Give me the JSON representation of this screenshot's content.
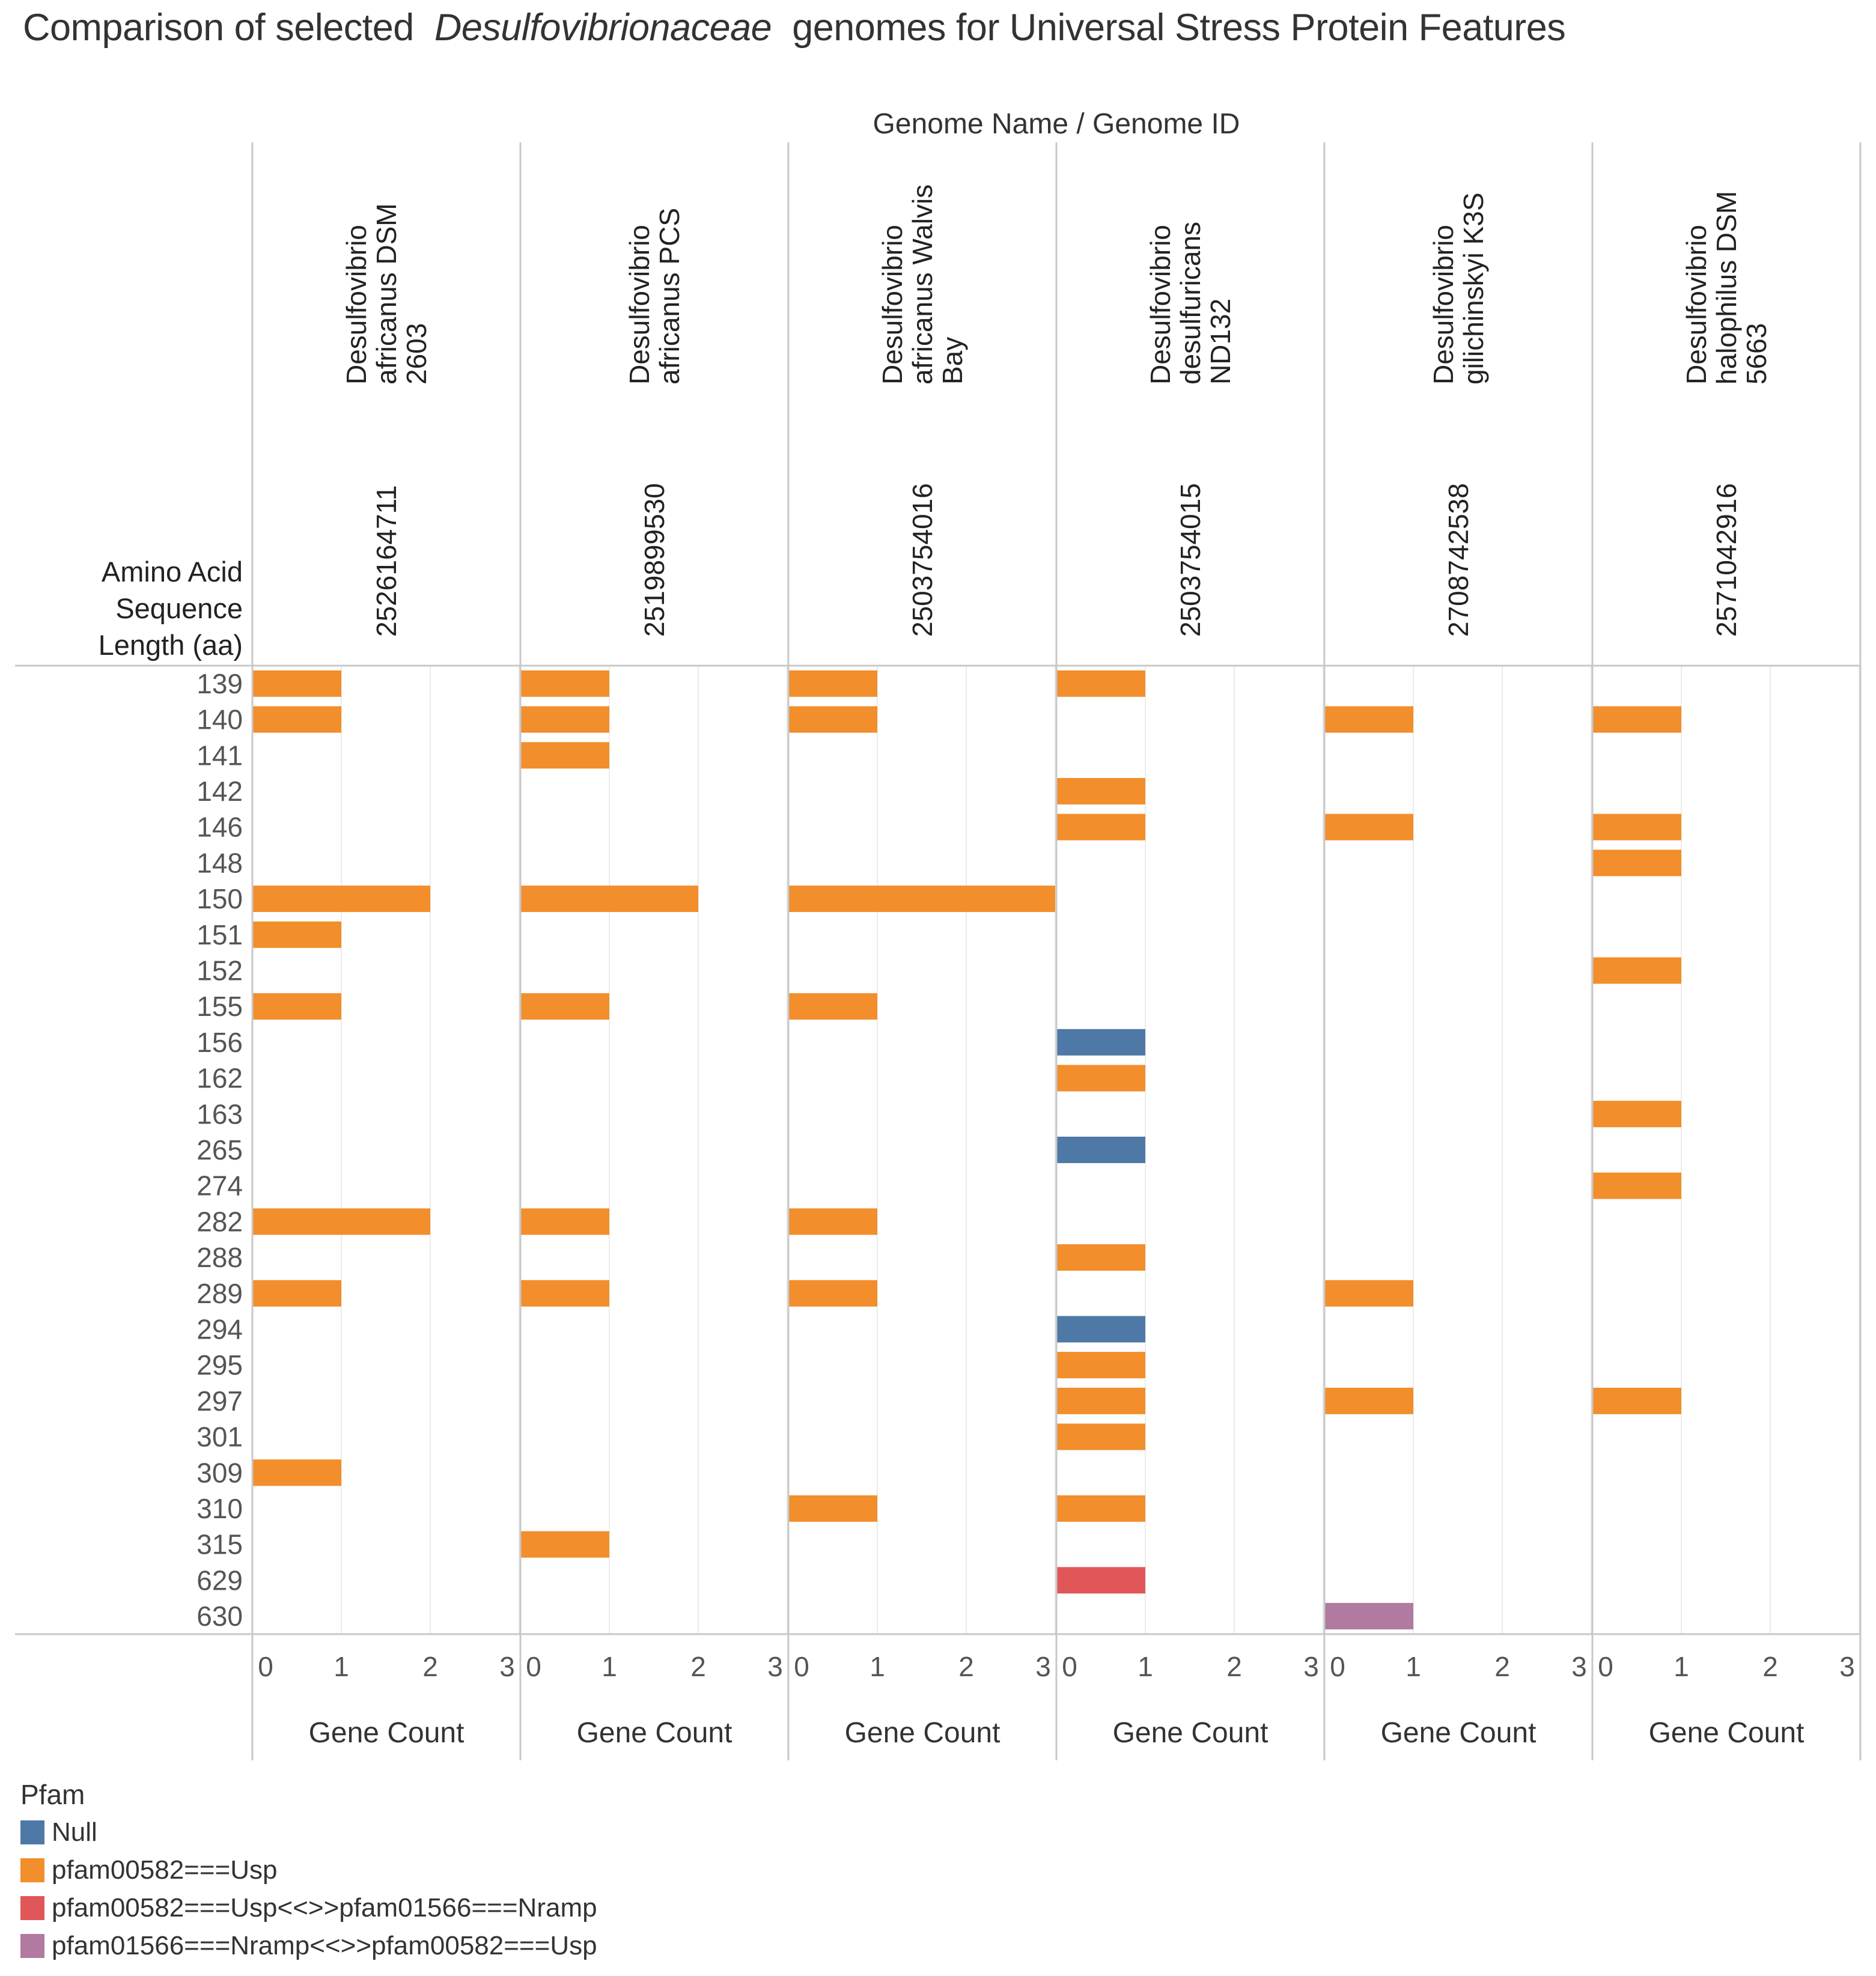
{
  "title": {
    "prefix": "Comparison of selected",
    "italic": "Desulfovibrionaceae",
    "suffix": "genomes for Universal Stress Protein Features"
  },
  "chart_data": {
    "type": "bar",
    "orientation": "horizontal",
    "header_label": "Genome Name  /  Genome ID",
    "row_header": [
      "Amino Acid",
      "Sequence",
      "Length (aa)"
    ],
    "xlabel": "Gene Count",
    "xlim": [
      0,
      3
    ],
    "xticks": [
      "0",
      "1",
      "2",
      "3"
    ],
    "categories": [
      "139",
      "140",
      "141",
      "142",
      "146",
      "148",
      "150",
      "151",
      "152",
      "155",
      "156",
      "162",
      "163",
      "265",
      "274",
      "282",
      "288",
      "289",
      "294",
      "295",
      "297",
      "301",
      "309",
      "310",
      "315",
      "629",
      "630"
    ],
    "legend_title": "Pfam",
    "colors": {
      "Null": "#4e79a7",
      "pfam00582===Usp": "#f28e2b",
      "pfam00582===Usp<<>>pfam01566===Nramp": "#e15759",
      "pfam01566===Nramp<<>>pfam00582===Usp": "#b07aa1"
    },
    "legend": [
      "Null",
      "pfam00582===Usp",
      "pfam00582===Usp<<>>pfam01566===Nramp",
      "pfam01566===Nramp<<>>pfam00582===Usp"
    ],
    "genomes": [
      {
        "name_lines": [
          "Desulfovibrio",
          "africanus DSM",
          "2603"
        ],
        "id": "2526164711",
        "bars": [
          {
            "length": "139",
            "pfam": "pfam00582===Usp",
            "count": 1
          },
          {
            "length": "140",
            "pfam": "pfam00582===Usp",
            "count": 1
          },
          {
            "length": "150",
            "pfam": "pfam00582===Usp",
            "count": 2
          },
          {
            "length": "151",
            "pfam": "pfam00582===Usp",
            "count": 1
          },
          {
            "length": "155",
            "pfam": "pfam00582===Usp",
            "count": 1
          },
          {
            "length": "282",
            "pfam": "pfam00582===Usp",
            "count": 2
          },
          {
            "length": "289",
            "pfam": "pfam00582===Usp",
            "count": 1
          },
          {
            "length": "309",
            "pfam": "pfam00582===Usp",
            "count": 1
          }
        ]
      },
      {
        "name_lines": [
          "Desulfovibrio",
          "africanus PCS"
        ],
        "id": "2519899530",
        "bars": [
          {
            "length": "139",
            "pfam": "pfam00582===Usp",
            "count": 1
          },
          {
            "length": "140",
            "pfam": "pfam00582===Usp",
            "count": 1
          },
          {
            "length": "141",
            "pfam": "pfam00582===Usp",
            "count": 1
          },
          {
            "length": "150",
            "pfam": "pfam00582===Usp",
            "count": 2
          },
          {
            "length": "155",
            "pfam": "pfam00582===Usp",
            "count": 1
          },
          {
            "length": "282",
            "pfam": "pfam00582===Usp",
            "count": 1
          },
          {
            "length": "289",
            "pfam": "pfam00582===Usp",
            "count": 1
          },
          {
            "length": "315",
            "pfam": "pfam00582===Usp",
            "count": 1
          }
        ]
      },
      {
        "name_lines": [
          "Desulfovibrio",
          "africanus Walvis",
          "Bay"
        ],
        "id": "2503754016",
        "bars": [
          {
            "length": "139",
            "pfam": "pfam00582===Usp",
            "count": 1
          },
          {
            "length": "140",
            "pfam": "pfam00582===Usp",
            "count": 1
          },
          {
            "length": "150",
            "pfam": "pfam00582===Usp",
            "count": 3
          },
          {
            "length": "155",
            "pfam": "pfam00582===Usp",
            "count": 1
          },
          {
            "length": "282",
            "pfam": "pfam00582===Usp",
            "count": 1
          },
          {
            "length": "289",
            "pfam": "pfam00582===Usp",
            "count": 1
          },
          {
            "length": "310",
            "pfam": "pfam00582===Usp",
            "count": 1
          }
        ]
      },
      {
        "name_lines": [
          "Desulfovibrio",
          "desulfuricans",
          "ND132"
        ],
        "id": "2503754015",
        "bars": [
          {
            "length": "139",
            "pfam": "pfam00582===Usp",
            "count": 1
          },
          {
            "length": "142",
            "pfam": "pfam00582===Usp",
            "count": 1
          },
          {
            "length": "146",
            "pfam": "pfam00582===Usp",
            "count": 1
          },
          {
            "length": "156",
            "pfam": "Null",
            "count": 1
          },
          {
            "length": "162",
            "pfam": "pfam00582===Usp",
            "count": 1
          },
          {
            "length": "265",
            "pfam": "Null",
            "count": 1
          },
          {
            "length": "288",
            "pfam": "pfam00582===Usp",
            "count": 1
          },
          {
            "length": "294",
            "pfam": "Null",
            "count": 1
          },
          {
            "length": "295",
            "pfam": "pfam00582===Usp",
            "count": 1
          },
          {
            "length": "297",
            "pfam": "pfam00582===Usp",
            "count": 1
          },
          {
            "length": "301",
            "pfam": "pfam00582===Usp",
            "count": 1
          },
          {
            "length": "310",
            "pfam": "pfam00582===Usp",
            "count": 1
          },
          {
            "length": "629",
            "pfam": "pfam00582===Usp<<>>pfam01566===Nramp",
            "count": 1
          }
        ]
      },
      {
        "name_lines": [
          "Desulfovibrio",
          "gilichinskyi K3S"
        ],
        "id": "2708742538",
        "bars": [
          {
            "length": "140",
            "pfam": "pfam00582===Usp",
            "count": 1
          },
          {
            "length": "146",
            "pfam": "pfam00582===Usp",
            "count": 1
          },
          {
            "length": "289",
            "pfam": "pfam00582===Usp",
            "count": 1
          },
          {
            "length": "297",
            "pfam": "pfam00582===Usp",
            "count": 1
          },
          {
            "length": "630",
            "pfam": "pfam01566===Nramp<<>>pfam00582===Usp",
            "count": 1
          }
        ]
      },
      {
        "name_lines": [
          "Desulfovibrio",
          "halophilus DSM",
          "5663"
        ],
        "id": "2571042916",
        "bars": [
          {
            "length": "140",
            "pfam": "pfam00582===Usp",
            "count": 1
          },
          {
            "length": "146",
            "pfam": "pfam00582===Usp",
            "count": 1
          },
          {
            "length": "148",
            "pfam": "pfam00582===Usp",
            "count": 1
          },
          {
            "length": "152",
            "pfam": "pfam00582===Usp",
            "count": 1
          },
          {
            "length": "163",
            "pfam": "pfam00582===Usp",
            "count": 1
          },
          {
            "length": "274",
            "pfam": "pfam00582===Usp",
            "count": 1
          },
          {
            "length": "297",
            "pfam": "pfam00582===Usp",
            "count": 1
          }
        ]
      }
    ]
  }
}
